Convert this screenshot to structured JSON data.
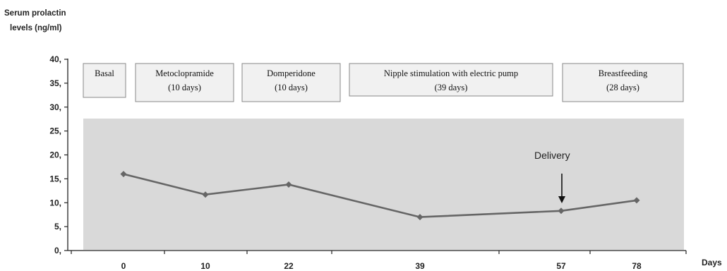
{
  "chart_data": {
    "type": "line",
    "ylabel_lines": [
      "Serum prolactin",
      "levels (ng/ml)"
    ],
    "xlabel": "Days",
    "ylim": [
      0,
      40
    ],
    "yticks": [
      "0,",
      "5,",
      "10,",
      "15,",
      "20,",
      "25,",
      "30,",
      "35,",
      "40,"
    ],
    "categories": [
      "0",
      "10",
      "22",
      "39",
      "57",
      "78"
    ],
    "values": [
      16,
      11.7,
      13.8,
      7,
      8.3,
      10.5
    ],
    "series_color": "#666666",
    "plot_background": "#d9d9d9",
    "phases": [
      {
        "lines": [
          "Basal"
        ]
      },
      {
        "lines": [
          "Metoclopramide",
          "(10 days)"
        ]
      },
      {
        "lines": [
          "Domperidone",
          "(10 days)"
        ]
      },
      {
        "lines": [
          "Nipple stimulation with electric pump",
          "(39 days)"
        ]
      },
      {
        "lines": [
          "Breastfeeding",
          "(28 days)"
        ]
      }
    ],
    "annotation": {
      "text": "Delivery",
      "arrow": "down"
    }
  }
}
